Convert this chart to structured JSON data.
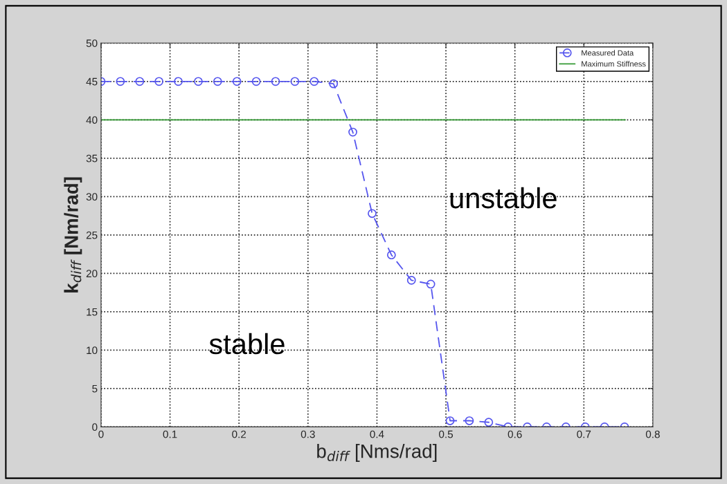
{
  "chart_data": {
    "type": "line",
    "xlabel": "b$_{diff}$ [Nms/rad]",
    "ylabel": "k$_{diff}$ [Nm/rad]",
    "xlim": [
      0,
      0.8
    ],
    "xticks": [
      0,
      0.1,
      0.2,
      0.3,
      0.4,
      0.5,
      0.6,
      0.7,
      0.8
    ],
    "ylim": [
      0,
      50
    ],
    "yticks": [
      0,
      5,
      10,
      15,
      20,
      25,
      30,
      35,
      40,
      45,
      50
    ],
    "grid": true,
    "legend": "top right",
    "annotations": [
      "stable",
      "unstable"
    ],
    "series": [
      {
        "name": "Measured Data",
        "color": "#5555ee",
        "marker": "circle",
        "line_style": "dashed",
        "x": [
          0,
          0.028,
          0.056,
          0.084,
          0.112,
          0.141,
          0.169,
          0.197,
          0.225,
          0.253,
          0.281,
          0.309,
          0.337,
          0.365,
          0.393,
          0.421,
          0.45,
          0.478,
          0.506,
          0.534,
          0.562,
          0.59,
          0.618,
          0.646,
          0.674,
          0.702,
          0.73,
          0.759
        ],
        "values": [
          45,
          45,
          45,
          45,
          45,
          45,
          45,
          45,
          45,
          45,
          45,
          45,
          44.7,
          38.4,
          27.8,
          22.4,
          19.1,
          18.6,
          0.8,
          0.8,
          0.6,
          0,
          0,
          0,
          0,
          0,
          0,
          0
        ]
      },
      {
        "name": "Maximum Stiffness",
        "color": "#339933",
        "marker": "none",
        "line_style": "solid",
        "x": [
          0,
          0.76
        ],
        "values": [
          40,
          40
        ]
      }
    ]
  }
}
